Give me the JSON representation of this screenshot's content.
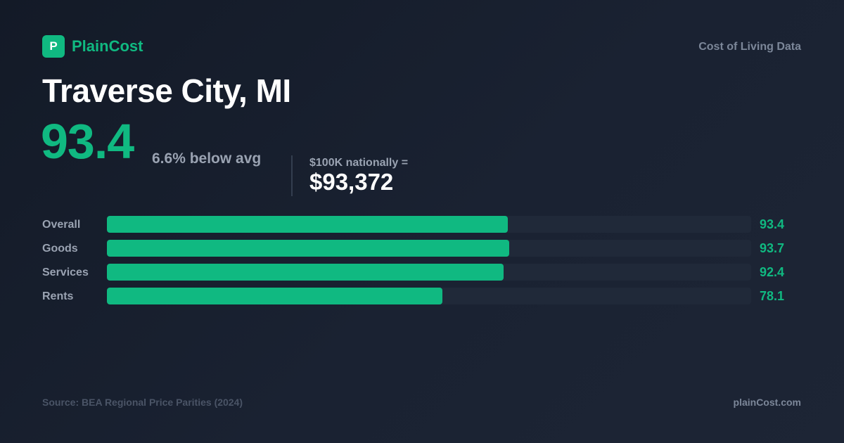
{
  "brand": {
    "logo_letter": "P",
    "name": "PlainCost",
    "tagline": "Cost of Living Data",
    "accent_color": "#10b981"
  },
  "headline": {
    "city": "Traverse City, MI",
    "score": "93.4",
    "comparison": "6.6% below avg",
    "national_label": "$100K nationally =",
    "national_value": "$93,372"
  },
  "chart_data": {
    "type": "bar",
    "orientation": "horizontal",
    "categories": [
      "Overall",
      "Goods",
      "Services",
      "Rents"
    ],
    "values": [
      93.4,
      93.7,
      92.4,
      78.1
    ],
    "value_labels": [
      "93.4",
      "93.7",
      "92.4",
      "78.1"
    ],
    "xlim": [
      0,
      150
    ],
    "grid": false,
    "legend": "none",
    "bar_color": "#10b981",
    "track_color": "#202939"
  },
  "footer": {
    "source": "Source: BEA Regional Price Parities (2024)",
    "site": "plainCost.com"
  }
}
